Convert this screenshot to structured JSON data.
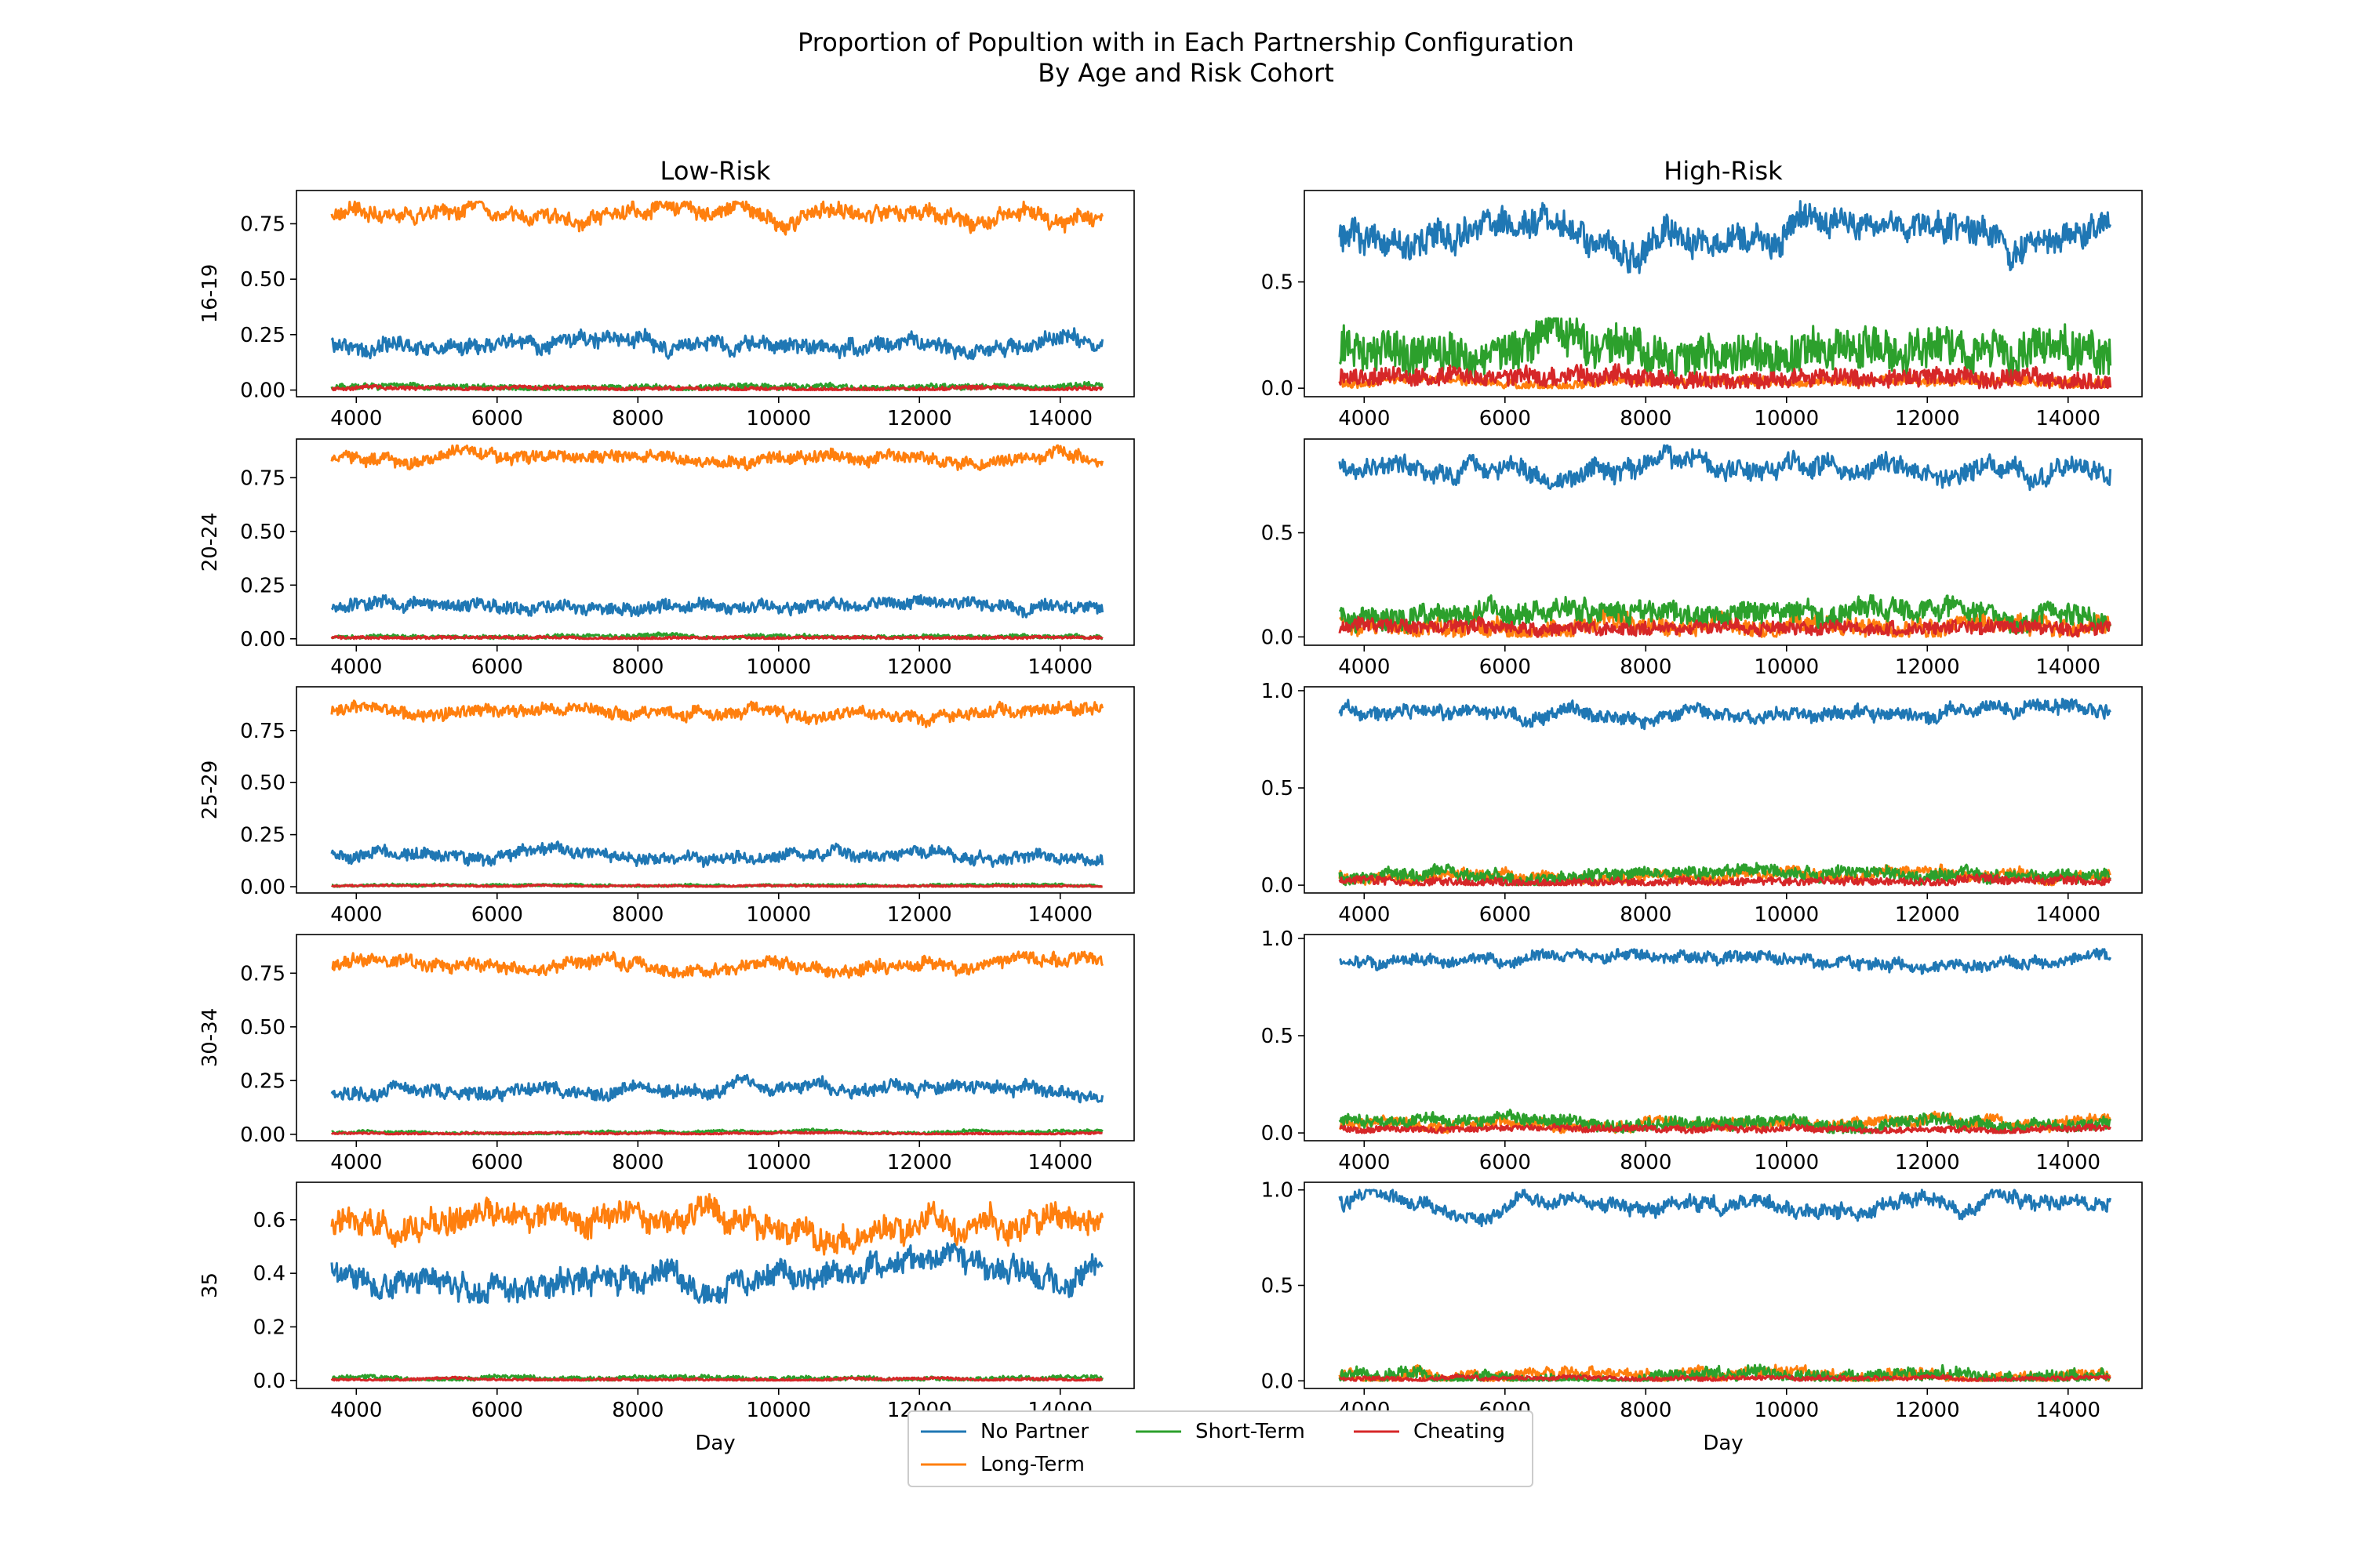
{
  "figure": {
    "title_line1": "Proportion of Popultion with in Each Partnership Configuration",
    "title_line2": "By Age and Risk Cohort"
  },
  "legend": {
    "placement": "bottom-center",
    "entries": [
      {
        "label": "No Partner",
        "color": "#1f77b4"
      },
      {
        "label": "Long-Term",
        "color": "#ff7f0e"
      },
      {
        "label": "Short-Term",
        "color": "#2ca02c"
      },
      {
        "label": "Cheating",
        "color": "#d62728"
      }
    ]
  },
  "chart_data": {
    "type": "line",
    "column_titles": [
      "Low-Risk",
      "High-Risk"
    ],
    "row_labels": [
      "16-19",
      "20-24",
      "25-29",
      "30-34",
      "35"
    ],
    "xlabel": "Day",
    "xlim": [
      3150,
      15050
    ],
    "xticks": [
      4000,
      6000,
      8000,
      10000,
      12000,
      14000
    ],
    "x_range": [
      3650,
      14600
    ],
    "grid": false,
    "panels": [
      {
        "row": "16-19",
        "column": "Low-Risk",
        "ylim": [
          -0.03,
          0.9
        ],
        "yticks": [
          "0.00",
          "0.25",
          "0.50",
          "0.75"
        ],
        "ytick_values": [
          0,
          0.25,
          0.5,
          0.75
        ],
        "series": [
          {
            "name": "No Partner",
            "mean": 0.2,
            "range": [
              0.14,
              0.32
            ],
            "noise": 0.03
          },
          {
            "name": "Long-Term",
            "mean": 0.78,
            "range": [
              0.65,
              0.85
            ],
            "noise": 0.03
          },
          {
            "name": "Short-Term",
            "mean": 0.015,
            "range": [
              0.0,
              0.04
            ],
            "noise": 0.012
          },
          {
            "name": "Cheating",
            "mean": 0.008,
            "range": [
              0.0,
              0.03
            ],
            "noise": 0.008
          }
        ]
      },
      {
        "row": "16-19",
        "column": "High-Risk",
        "ylim": [
          -0.04,
          0.93
        ],
        "yticks": [
          "0.0",
          "0.5"
        ],
        "ytick_values": [
          0,
          0.5
        ],
        "series": [
          {
            "name": "No Partner",
            "mean": 0.72,
            "range": [
              0.52,
              0.9
            ],
            "noise": 0.06
          },
          {
            "name": "Long-Term",
            "mean": 0.03,
            "range": [
              0.0,
              0.08
            ],
            "noise": 0.02
          },
          {
            "name": "Short-Term",
            "mean": 0.17,
            "range": [
              0.05,
              0.33
            ],
            "noise": 0.09
          },
          {
            "name": "Cheating",
            "mean": 0.05,
            "range": [
              0.0,
              0.13
            ],
            "noise": 0.04
          }
        ]
      },
      {
        "row": "20-24",
        "column": "Low-Risk",
        "ylim": [
          -0.03,
          0.93
        ],
        "yticks": [
          "0.00",
          "0.25",
          "0.50",
          "0.75"
        ],
        "ytick_values": [
          0,
          0.25,
          0.5,
          0.75
        ],
        "series": [
          {
            "name": "No Partner",
            "mean": 0.15,
            "range": [
              0.1,
              0.23
            ],
            "noise": 0.025
          },
          {
            "name": "Long-Term",
            "mean": 0.84,
            "range": [
              0.76,
              0.9
            ],
            "noise": 0.025
          },
          {
            "name": "Short-Term",
            "mean": 0.01,
            "range": [
              0.0,
              0.03
            ],
            "noise": 0.008
          },
          {
            "name": "Cheating",
            "mean": 0.006,
            "range": [
              0.0,
              0.02
            ],
            "noise": 0.006
          }
        ]
      },
      {
        "row": "20-24",
        "column": "High-Risk",
        "ylim": [
          -0.04,
          0.95
        ],
        "yticks": [
          "0.0",
          "0.5"
        ],
        "ytick_values": [
          0,
          0.5
        ],
        "series": [
          {
            "name": "No Partner",
            "mean": 0.8,
            "range": [
              0.64,
              0.92
            ],
            "noise": 0.04
          },
          {
            "name": "Long-Term",
            "mean": 0.06,
            "range": [
              0.0,
              0.2
            ],
            "noise": 0.04
          },
          {
            "name": "Short-Term",
            "mean": 0.1,
            "range": [
              0.02,
              0.2
            ],
            "noise": 0.05
          },
          {
            "name": "Cheating",
            "mean": 0.04,
            "range": [
              0.0,
              0.1
            ],
            "noise": 0.03
          }
        ]
      },
      {
        "row": "25-29",
        "column": "Low-Risk",
        "ylim": [
          -0.03,
          0.96
        ],
        "yticks": [
          "0.00",
          "0.25",
          "0.50",
          "0.75"
        ],
        "ytick_values": [
          0,
          0.25,
          0.5,
          0.75
        ],
        "series": [
          {
            "name": "No Partner",
            "mean": 0.15,
            "range": [
              0.09,
              0.22
            ],
            "noise": 0.025
          },
          {
            "name": "Long-Term",
            "mean": 0.84,
            "range": [
              0.76,
              0.91
            ],
            "noise": 0.025
          },
          {
            "name": "Short-Term",
            "mean": 0.006,
            "range": [
              0.0,
              0.02
            ],
            "noise": 0.005
          },
          {
            "name": "Cheating",
            "mean": 0.004,
            "range": [
              0.0,
              0.015
            ],
            "noise": 0.004
          }
        ]
      },
      {
        "row": "25-29",
        "column": "High-Risk",
        "ylim": [
          -0.04,
          1.02
        ],
        "yticks": [
          "0.0",
          "0.5",
          "1.0"
        ],
        "ytick_values": [
          0,
          0.5,
          1.0
        ],
        "series": [
          {
            "name": "No Partner",
            "mean": 0.88,
            "range": [
              0.78,
              0.96
            ],
            "noise": 0.03
          },
          {
            "name": "Long-Term",
            "mean": 0.05,
            "range": [
              0.0,
              0.13
            ],
            "noise": 0.025
          },
          {
            "name": "Short-Term",
            "mean": 0.05,
            "range": [
              0.0,
              0.12
            ],
            "noise": 0.03
          },
          {
            "name": "Cheating",
            "mean": 0.02,
            "range": [
              0.0,
              0.06
            ],
            "noise": 0.02
          }
        ]
      },
      {
        "row": "30-34",
        "column": "Low-Risk",
        "ylim": [
          -0.03,
          0.93
        ],
        "yticks": [
          "0.00",
          "0.25",
          "0.50",
          "0.75"
        ],
        "ytick_values": [
          0,
          0.25,
          0.5,
          0.75
        ],
        "series": [
          {
            "name": "No Partner",
            "mean": 0.21,
            "range": [
              0.12,
              0.28
            ],
            "noise": 0.025
          },
          {
            "name": "Long-Term",
            "mean": 0.79,
            "range": [
              0.72,
              0.88
            ],
            "noise": 0.025
          },
          {
            "name": "Short-Term",
            "mean": 0.008,
            "range": [
              0.0,
              0.03
            ],
            "noise": 0.006
          },
          {
            "name": "Cheating",
            "mean": 0.004,
            "range": [
              0.0,
              0.015
            ],
            "noise": 0.004
          }
        ]
      },
      {
        "row": "30-34",
        "column": "High-Risk",
        "ylim": [
          -0.04,
          1.02
        ],
        "yticks": [
          "0.0",
          "0.5",
          "1.0"
        ],
        "ytick_values": [
          0,
          0.5,
          1.0
        ],
        "series": [
          {
            "name": "No Partner",
            "mean": 0.89,
            "range": [
              0.8,
              0.96
            ],
            "noise": 0.025
          },
          {
            "name": "Long-Term",
            "mean": 0.05,
            "range": [
              0.0,
              0.14
            ],
            "noise": 0.025
          },
          {
            "name": "Short-Term",
            "mean": 0.05,
            "range": [
              0.0,
              0.12
            ],
            "noise": 0.03
          },
          {
            "name": "Cheating",
            "mean": 0.02,
            "range": [
              0.0,
              0.05
            ],
            "noise": 0.015
          }
        ]
      },
      {
        "row": "35",
        "column": "Low-Risk",
        "ylim": [
          -0.03,
          0.74
        ],
        "yticks": [
          "0.0",
          "0.2",
          "0.4",
          "0.6"
        ],
        "ytick_values": [
          0,
          0.2,
          0.4,
          0.6
        ],
        "series": [
          {
            "name": "No Partner",
            "mean": 0.41,
            "range": [
              0.29,
              0.55
            ],
            "noise": 0.04
          },
          {
            "name": "Long-Term",
            "mean": 0.58,
            "range": [
              0.42,
              0.71
            ],
            "noise": 0.04
          },
          {
            "name": "Short-Term",
            "mean": 0.008,
            "range": [
              0.0,
              0.03
            ],
            "noise": 0.008
          },
          {
            "name": "Cheating",
            "mean": 0.004,
            "range": [
              0.0,
              0.015
            ],
            "noise": 0.004
          }
        ]
      },
      {
        "row": "35",
        "column": "High-Risk",
        "ylim": [
          -0.04,
          1.04
        ],
        "yticks": [
          "0.0",
          "0.5",
          "1.0"
        ],
        "ytick_values": [
          0,
          0.5,
          1.0
        ],
        "series": [
          {
            "name": "No Partner",
            "mean": 0.93,
            "range": [
              0.72,
              1.0
            ],
            "noise": 0.03
          },
          {
            "name": "Long-Term",
            "mean": 0.03,
            "range": [
              0.0,
              0.17
            ],
            "noise": 0.025
          },
          {
            "name": "Short-Term",
            "mean": 0.03,
            "range": [
              0.0,
              0.15
            ],
            "noise": 0.03
          },
          {
            "name": "Cheating",
            "mean": 0.01,
            "range": [
              0.0,
              0.04
            ],
            "noise": 0.01
          }
        ]
      }
    ]
  }
}
